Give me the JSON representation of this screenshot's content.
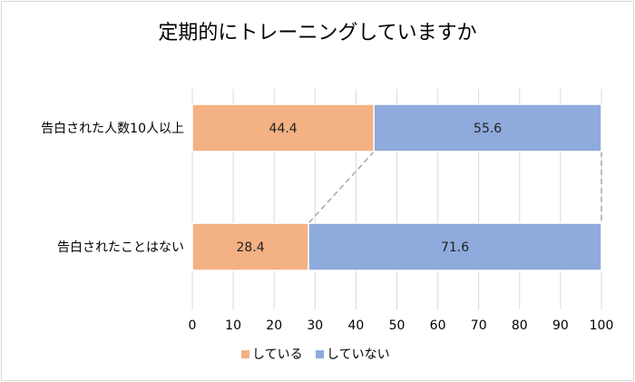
{
  "chart_data": {
    "type": "bar",
    "orientation": "horizontal",
    "stacked": "percent",
    "title": "定期的にトレーニングしていますか",
    "categories": [
      "告白された人数10人以上",
      "告白されたことはない"
    ],
    "series": [
      {
        "name": "している",
        "values": [
          44.4,
          28.4
        ],
        "color": "#f4b183"
      },
      {
        "name": "していない",
        "values": [
          55.6,
          71.6
        ],
        "color": "#8faadc"
      }
    ],
    "xlim": [
      0,
      100
    ],
    "xticks": [
      0,
      10,
      20,
      30,
      40,
      50,
      60,
      70,
      80,
      90,
      100
    ],
    "grid": true,
    "legend": "bottom",
    "series_lines": true
  }
}
